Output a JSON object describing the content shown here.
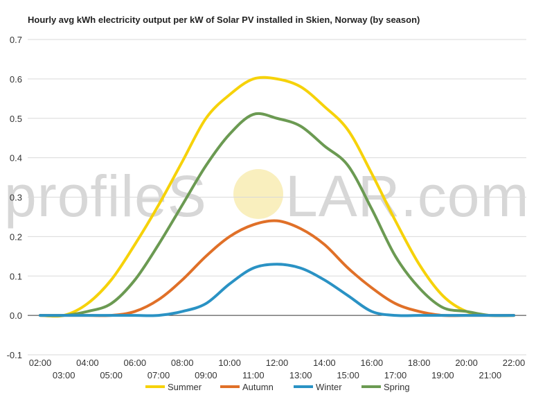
{
  "chart_data": {
    "type": "line",
    "title": "Hourly avg kWh electricity output per kW of Solar PV installed in Skien, Norway (by season)",
    "xlabel": "",
    "ylabel": "",
    "x": [
      "02:00",
      "03:00",
      "04:00",
      "05:00",
      "06:00",
      "07:00",
      "08:00",
      "09:00",
      "10:00",
      "11:00",
      "12:00",
      "13:00",
      "14:00",
      "15:00",
      "16:00",
      "17:00",
      "18:00",
      "19:00",
      "20:00",
      "21:00",
      "22:00"
    ],
    "y_ticks": [
      "-0.1",
      "0.0",
      "0.1",
      "0.2",
      "0.3",
      "0.4",
      "0.5",
      "0.6",
      "0.7"
    ],
    "ylim": [
      -0.1,
      0.7
    ],
    "grid": true,
    "legend_position": "bottom",
    "series": [
      {
        "name": "Summer",
        "color": "#f6d20a",
        "values": [
          0.0,
          0.0,
          0.03,
          0.09,
          0.18,
          0.28,
          0.39,
          0.5,
          0.56,
          0.6,
          0.6,
          0.58,
          0.53,
          0.47,
          0.36,
          0.24,
          0.13,
          0.05,
          0.01,
          0.0,
          0.0
        ]
      },
      {
        "name": "Autumn",
        "color": "#e07028",
        "values": [
          0.0,
          0.0,
          0.0,
          0.0,
          0.01,
          0.04,
          0.09,
          0.15,
          0.2,
          0.23,
          0.24,
          0.22,
          0.18,
          0.12,
          0.07,
          0.03,
          0.01,
          0.0,
          0.0,
          0.0,
          0.0
        ]
      },
      {
        "name": "Winter",
        "color": "#2a92c4",
        "values": [
          0.0,
          0.0,
          0.0,
          0.0,
          0.0,
          0.0,
          0.01,
          0.03,
          0.08,
          0.12,
          0.13,
          0.12,
          0.09,
          0.05,
          0.01,
          0.0,
          0.0,
          0.0,
          0.0,
          0.0,
          0.0
        ]
      },
      {
        "name": "Spring",
        "color": "#6b9a52",
        "values": [
          0.0,
          0.0,
          0.01,
          0.03,
          0.09,
          0.18,
          0.28,
          0.38,
          0.46,
          0.51,
          0.5,
          0.48,
          0.43,
          0.38,
          0.27,
          0.15,
          0.07,
          0.02,
          0.01,
          0.0,
          0.0
        ]
      }
    ]
  },
  "watermark": {
    "text_left": "profileS",
    "text_right": "LAR.com",
    "sun_color": "#f7e9a8"
  }
}
